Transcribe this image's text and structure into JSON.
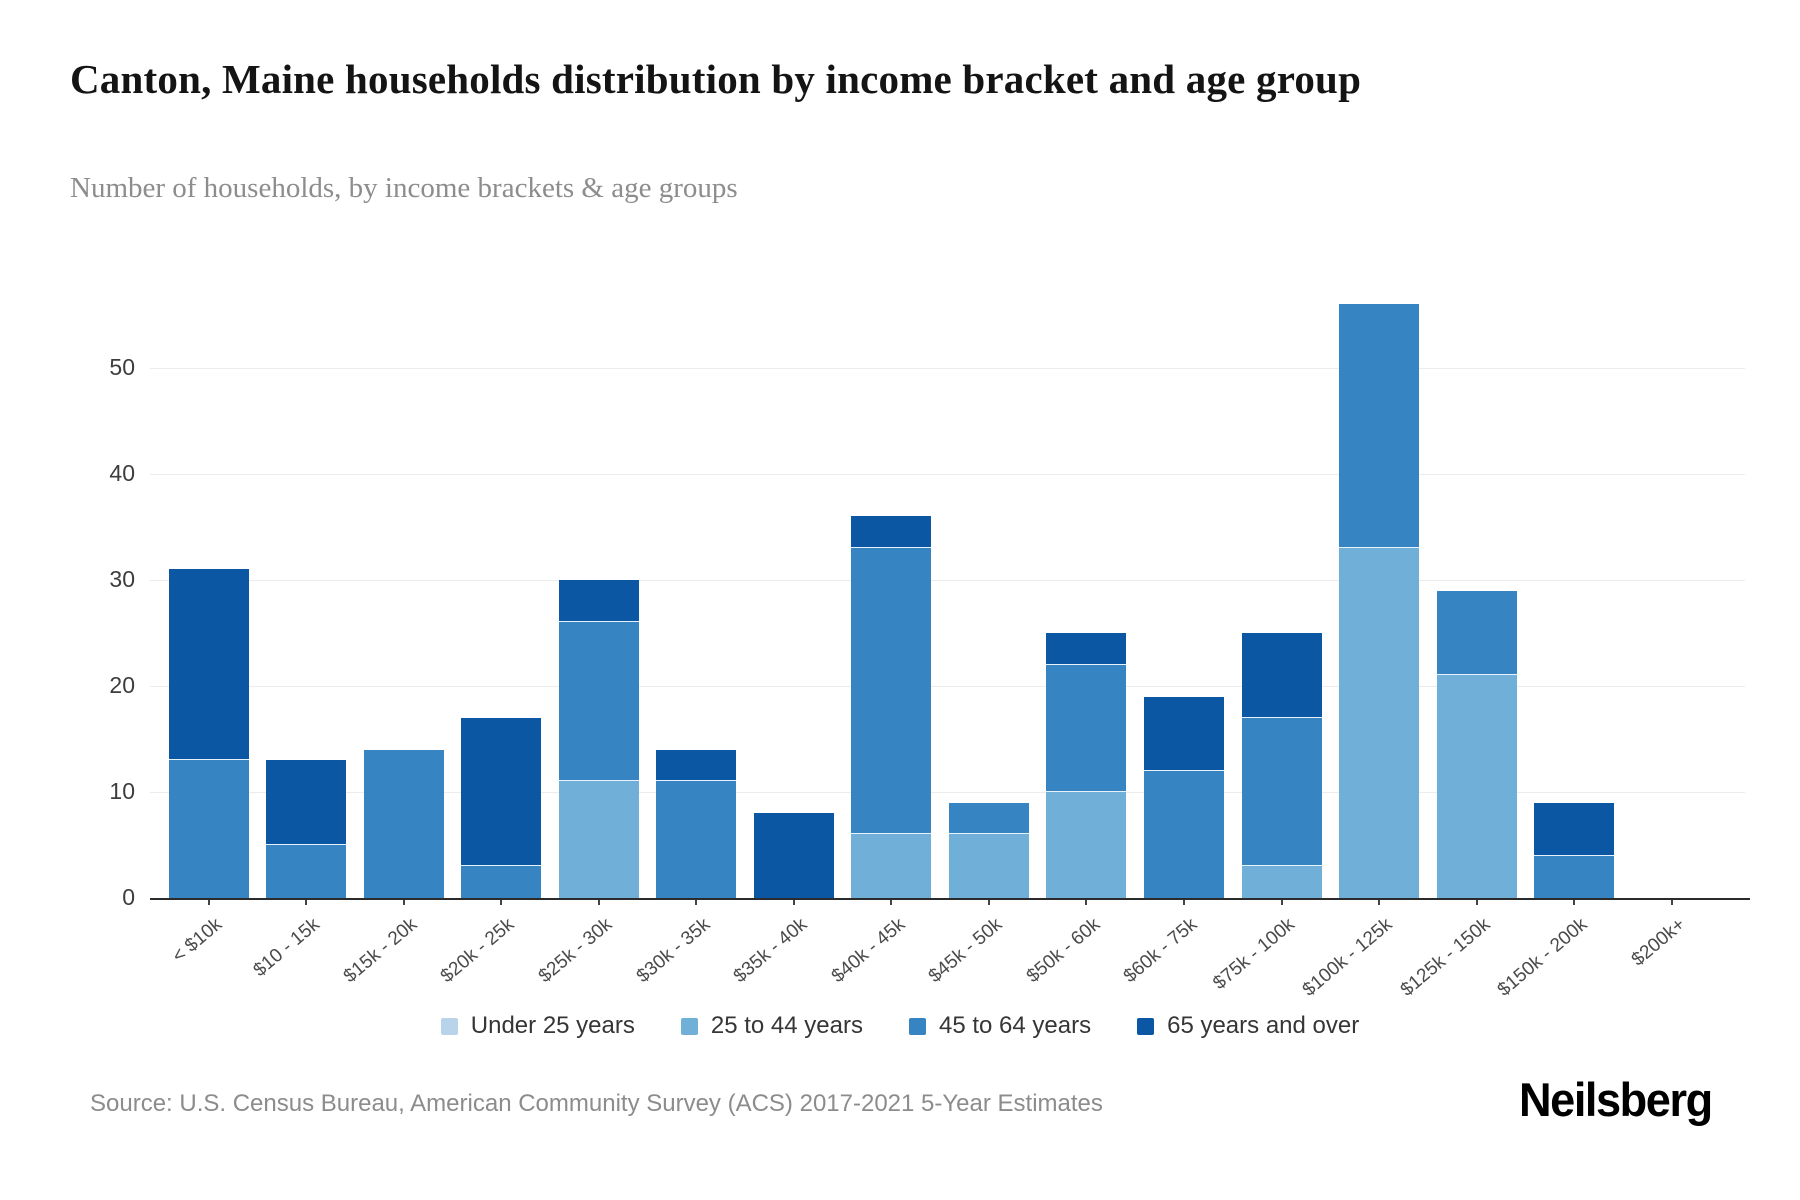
{
  "title": "Canton, Maine households distribution by income bracket and age group",
  "subtitle": "Number of households, by income brackets & age groups",
  "source": "Source: U.S. Census Bureau, American Community Survey (ACS) 2017-2021 5-Year Estimates",
  "logo": "Neilsberg",
  "colors": {
    "under_25": "#b9d4ea",
    "age_25_44": "#6fafd8",
    "age_45_64": "#3784c2",
    "age_65_over": "#0b57a4",
    "gridline": "#ececec",
    "axis": "#2b2b2b",
    "segment_separator": "#e8f2fa"
  },
  "chart_data": {
    "type": "bar",
    "stacked": true,
    "title": "Canton, Maine households distribution by income bracket and age group",
    "xlabel": "",
    "ylabel": "Number of households",
    "ylim": [
      0,
      56
    ],
    "yticks": [
      0,
      10,
      20,
      30,
      40,
      50
    ],
    "grid": true,
    "legend_position": "bottom",
    "categories": [
      "< $10k",
      "$10 - 15k",
      "$15k - 20k",
      "$20k - 25k",
      "$25k - 30k",
      "$30k - 35k",
      "$35k - 40k",
      "$40k - 45k",
      "$45k - 50k",
      "$50k - 60k",
      "$60k - 75k",
      "$75k - 100k",
      "$100k - 125k",
      "$125k - 150k",
      "$150k - 200k",
      "$200k+"
    ],
    "series": [
      {
        "name": "Under 25 years",
        "color": "#b9d4ea",
        "values": [
          0,
          0,
          0,
          0,
          0,
          0,
          0,
          0,
          0,
          0,
          0,
          0,
          0,
          0,
          0,
          0
        ]
      },
      {
        "name": "25 to 44 years",
        "color": "#6fafd8",
        "values": [
          0,
          0,
          0,
          0,
          11,
          0,
          0,
          6,
          6,
          10,
          0,
          3,
          33,
          21,
          0,
          0
        ]
      },
      {
        "name": "45 to 64 years",
        "color": "#3784c2",
        "values": [
          13,
          5,
          14,
          3,
          15,
          11,
          0,
          27,
          3,
          12,
          12,
          14,
          23,
          8,
          4,
          0
        ]
      },
      {
        "name": "65 years and over",
        "color": "#0b57a4",
        "values": [
          18,
          8,
          0,
          14,
          4,
          3,
          8,
          3,
          0,
          3,
          7,
          8,
          0,
          0,
          5,
          0
        ]
      }
    ],
    "totals": [
      31,
      13,
      14,
      17,
      30,
      14,
      8,
      36,
      9,
      25,
      19,
      25,
      56,
      29,
      9,
      0
    ]
  }
}
